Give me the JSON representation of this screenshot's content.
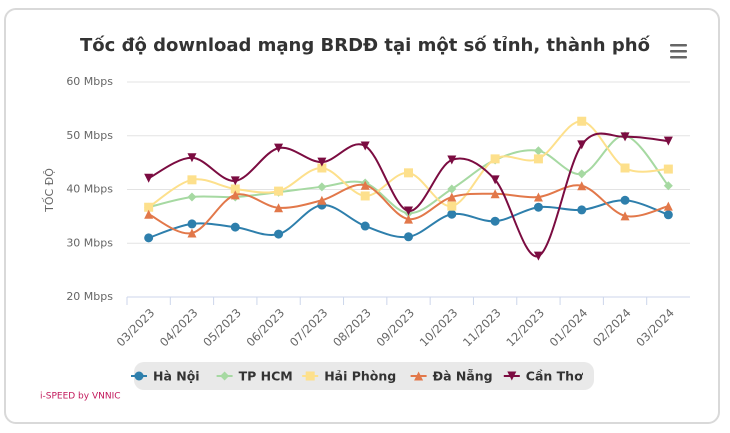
{
  "chart_data": {
    "type": "line",
    "title": "Tốc độ download mạng BRDĐ tại một số tỉnh, thành phố",
    "y_title": "TỐC ĐỘ",
    "credit": "i-SPEED by VNNIC",
    "categories": [
      "03/2023",
      "04/2023",
      "05/2023",
      "06/2023",
      "07/2023",
      "08/2023",
      "09/2023",
      "10/2023",
      "11/2023",
      "12/2023",
      "01/2024",
      "02/2024",
      "03/2024"
    ],
    "ylim": [
      20,
      60
    ],
    "yticks": [
      {
        "value": 20,
        "label": "20 Mbps"
      },
      {
        "value": 30,
        "label": "30 Mbps"
      },
      {
        "value": 40,
        "label": "40 Mbps"
      },
      {
        "value": 50,
        "label": "50 Mbps"
      },
      {
        "value": 60,
        "label": "60 Mbps"
      }
    ],
    "grid": true,
    "legend": "bottom",
    "series": [
      {
        "name": "Hà Nội",
        "color": "#2e7fac",
        "marker": "circle",
        "values": [
          31.0,
          33.6,
          33.0,
          31.7,
          37.1,
          33.2,
          31.2,
          35.4,
          34.1,
          36.7,
          36.2,
          38.0,
          35.3
        ]
      },
      {
        "name": "TP HCM",
        "color": "#a6d9a2",
        "marker": "diamond",
        "values": [
          36.7,
          38.6,
          38.6,
          39.5,
          40.5,
          41.2,
          35.6,
          40.1,
          45.5,
          47.2,
          42.9,
          50.0,
          40.7
        ]
      },
      {
        "name": "Hải Phòng",
        "color": "#fde08c",
        "marker": "square",
        "values": [
          36.7,
          41.8,
          40.1,
          39.7,
          44.0,
          38.8,
          43.1,
          36.9,
          45.7,
          45.7,
          52.7,
          44.0,
          43.8
        ]
      },
      {
        "name": "Đà Nẵng",
        "color": "#e2784a",
        "marker": "triangle",
        "values": [
          35.4,
          31.9,
          39.0,
          36.6,
          38.0,
          40.8,
          34.5,
          38.6,
          39.2,
          38.6,
          40.7,
          35.1,
          36.9
        ]
      },
      {
        "name": "Cần Thơ",
        "color": "#7b0c41",
        "marker": "triangle-down",
        "values": [
          42.1,
          45.9,
          41.6,
          47.7,
          45.1,
          48.1,
          36.0,
          45.5,
          41.8,
          27.6,
          48.3,
          49.8,
          49.0
        ]
      }
    ]
  }
}
